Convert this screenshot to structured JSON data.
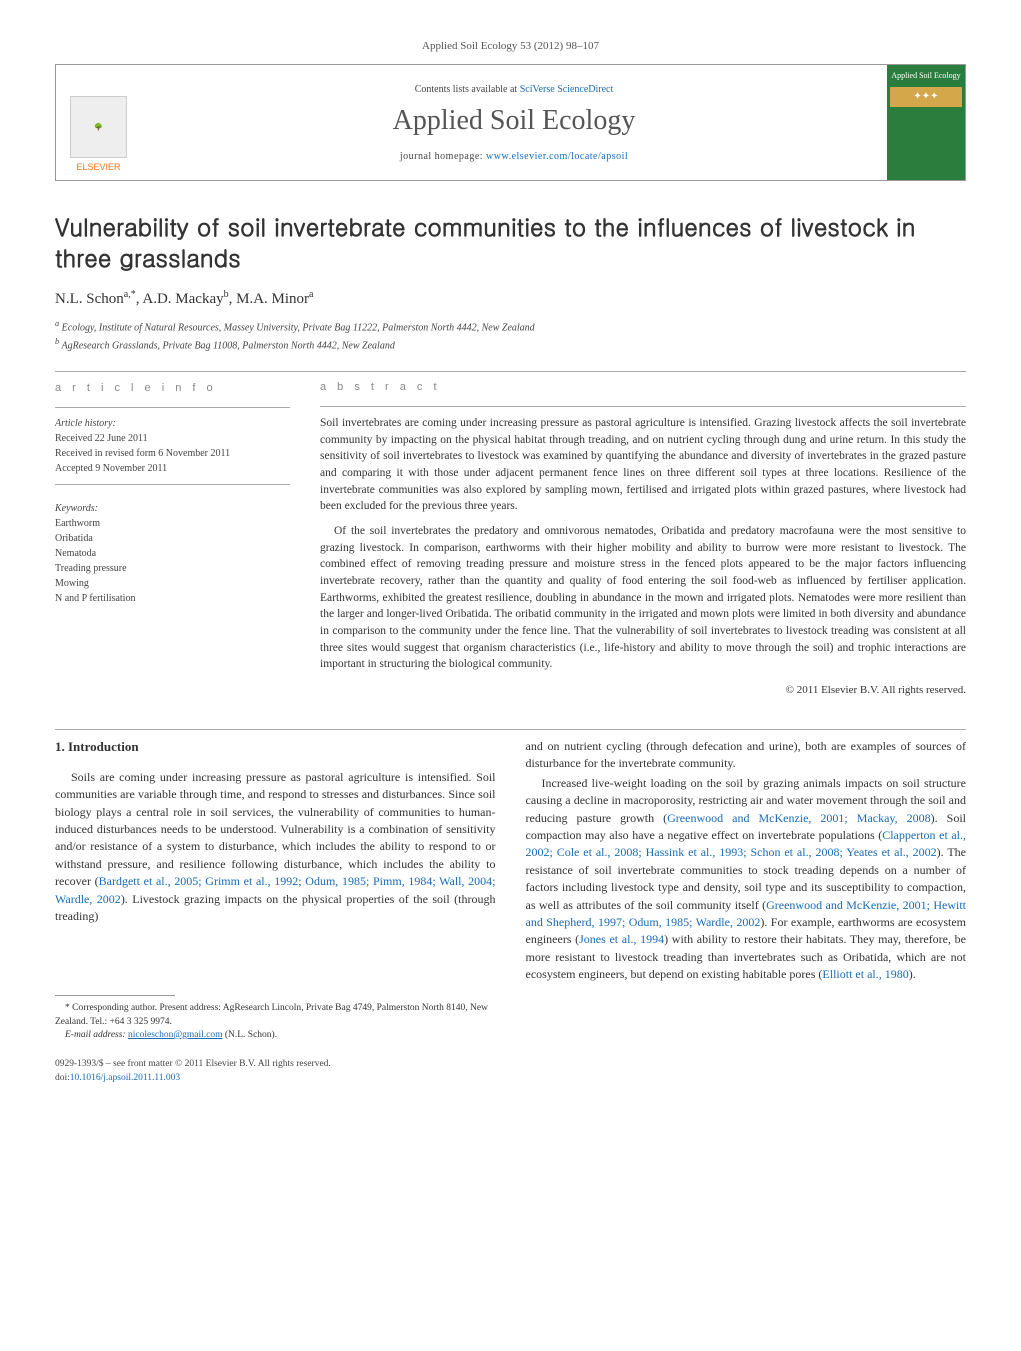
{
  "header": {
    "citation": "Applied Soil Ecology 53 (2012) 98–107",
    "contents_prefix": "Contents lists available at ",
    "contents_link": "SciVerse ScienceDirect",
    "journal_title": "Applied Soil Ecology",
    "homepage_prefix": "journal homepage: ",
    "homepage_url": "www.elsevier.com/locate/apsoil",
    "publisher": "ELSEVIER",
    "cover_title": "Applied Soil Ecology"
  },
  "article": {
    "title": "Vulnerability of soil invertebrate communities to the influences of livestock in three grasslands",
    "authors_html": "N.L. Schon",
    "author_sup_a": "a,",
    "author_star": "*",
    "author2": ", A.D. Mackay",
    "author_sup_b": "b",
    "author3": ", M.A. Minor",
    "author_sup_a2": "a",
    "affiliation_a": "a Ecology, Institute of Natural Resources, Massey University, Private Bag 11222, Palmerston North 4442, New Zealand",
    "affiliation_b": "b AgResearch Grasslands, Private Bag 11008, Palmerston North 4442, New Zealand"
  },
  "info": {
    "heading": "a r t i c l e   i n f o",
    "history_head": "Article history:",
    "received": "Received 22 June 2011",
    "revised": "Received in revised form 6 November 2011",
    "accepted": "Accepted 9 November 2011",
    "keywords_head": "Keywords:",
    "keywords": [
      "Earthworm",
      "Oribatida",
      "Nematoda",
      "Treading pressure",
      "Mowing",
      "N and P fertilisation"
    ]
  },
  "abstract": {
    "heading": "a b s t r a c t",
    "p1": "Soil invertebrates are coming under increasing pressure as pastoral agriculture is intensified. Grazing livestock affects the soil invertebrate community by impacting on the physical habitat through treading, and on nutrient cycling through dung and urine return. In this study the sensitivity of soil invertebrates to livestock was examined by quantifying the abundance and diversity of invertebrates in the grazed pasture and comparing it with those under adjacent permanent fence lines on three different soil types at three locations. Resilience of the invertebrate communities was also explored by sampling mown, fertilised and irrigated plots within grazed pastures, where livestock had been excluded for the previous three years.",
    "p2": "Of the soil invertebrates the predatory and omnivorous nematodes, Oribatida and predatory macrofauna were the most sensitive to grazing livestock. In comparison, earthworms with their higher mobility and ability to burrow were more resistant to livestock. The combined effect of removing treading pressure and moisture stress in the fenced plots appeared to be the major factors influencing invertebrate recovery, rather than the quantity and quality of food entering the soil food-web as influenced by fertiliser application. Earthworms, exhibited the greatest resilience, doubling in abundance in the mown and irrigated plots. Nematodes were more resilient than the larger and longer-lived Oribatida. The oribatid community in the irrigated and mown plots were limited in both diversity and abundance in comparison to the community under the fence line. That the vulnerability of soil invertebrates to livestock treading was consistent at all three sites would suggest that organism characteristics (i.e., life-history and ability to move through the soil) and trophic interactions are important in structuring the biological community.",
    "copyright": "© 2011 Elsevier B.V. All rights reserved."
  },
  "body": {
    "section1_heading": "1. Introduction",
    "col1_p1": "Soils are coming under increasing pressure as pastoral agriculture is intensified. Soil communities are variable through time, and respond to stresses and disturbances. Since soil biology plays a central role in soil services, the vulnerability of communities to human-induced disturbances needs to be understood. Vulnerability is a combination of sensitivity and/or resistance of a system to disturbance, which includes the ability to respond to or withstand pressure, and resilience following disturbance, which includes the ability to recover (",
    "col1_ref1": "Bardgett et al., 2005; Grimm et al., 1992; Odum, 1985; Pimm, 1984; Wall, 2004; Wardle, 2002",
    "col1_p1_end": "). Livestock grazing impacts on the physical properties of the soil (through treading)",
    "col2_p0": "and on nutrient cycling (through defecation and urine), both are examples of sources of disturbance for the invertebrate community.",
    "col2_p1_a": "Increased live-weight loading on the soil by grazing animals impacts on soil structure causing a decline in macroporosity, restricting air and water movement through the soil and reducing pasture growth (",
    "col2_ref1": "Greenwood and McKenzie, 2001; Mackay, 2008",
    "col2_p1_b": "). Soil compaction may also have a negative effect on invertebrate populations (",
    "col2_ref2": "Clapperton et al., 2002; Cole et al., 2008; Hassink et al., 1993; Schon et al., 2008; Yeates et al., 2002",
    "col2_p1_c": "). The resistance of soil invertebrate communities to stock treading depends on a number of factors including livestock type and density, soil type and its susceptibility to compaction, as well as attributes of the soil community itself (",
    "col2_ref3": "Greenwood and McKenzie, 2001; Hewitt and Shepherd, 1997; Odum, 1985; Wardle, 2002",
    "col2_p1_d": "). For example, earthworms are ecosystem engineers (",
    "col2_ref4": "Jones et al., 1994",
    "col2_p1_e": ") with ability to restore their habitats. They may, therefore, be more resistant to livestock treading than invertebrates such as Oribatida, which are not ecosystem engineers, but depend on existing habitable pores (",
    "col2_ref5": "Elliott et al., 1980",
    "col2_p1_f": ")."
  },
  "footnote": {
    "corr": "* Corresponding author. Present address: AgResearch Lincoln, Private Bag 4749, Palmerston North 8140, New Zealand. Tel.: +64 3 325 9974.",
    "email_label": "E-mail address: ",
    "email": "nicoleschon@gmail.com",
    "email_suffix": " (N.L. Schon)."
  },
  "footer": {
    "issn": "0929-1393/$ – see front matter © 2011 Elsevier B.V. All rights reserved.",
    "doi_label": "doi:",
    "doi": "10.1016/j.apsoil.2011.11.003"
  },
  "colors": {
    "link": "#1a6bb5",
    "publisher_orange": "#f97316",
    "cover_green": "#2a7d3c",
    "cover_gold": "#d4a84a"
  }
}
